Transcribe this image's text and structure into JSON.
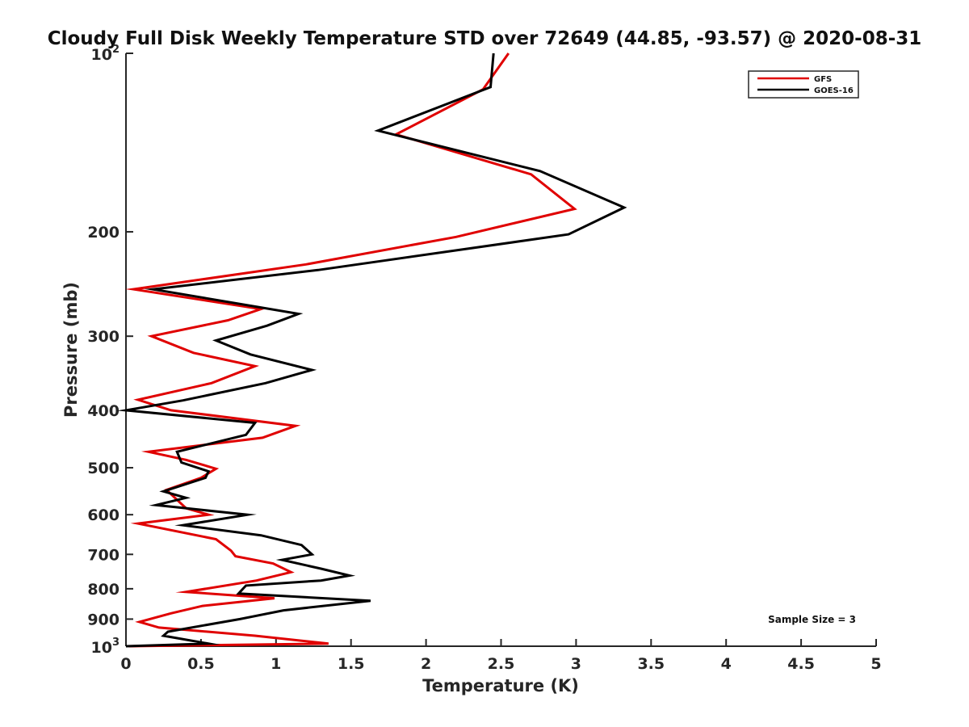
{
  "chart_data": {
    "type": "line",
    "title": "Cloudy Full Disk Weekly Temperature STD over 72649 (44.85, -93.57) @ 2020-08-31",
    "xlabel": "Temperature (K)",
    "ylabel": "Pressure (mb)",
    "xlim": [
      0,
      5
    ],
    "ylim": [
      1000,
      100
    ],
    "y_scale": "log",
    "y_reversed": true,
    "x_ticks": [
      "0",
      "0.5",
      "1",
      "1.5",
      "2",
      "2.5",
      "3",
      "3.5",
      "4",
      "4.5",
      "5"
    ],
    "x_tick_values": [
      0,
      0.5,
      1,
      1.5,
      2,
      2.5,
      3,
      3.5,
      4,
      4.5,
      5
    ],
    "y_ticks_plain": [
      {
        "value": 200,
        "label": "200"
      },
      {
        "value": 300,
        "label": "300"
      },
      {
        "value": 400,
        "label": "400"
      },
      {
        "value": 500,
        "label": "500"
      },
      {
        "value": 600,
        "label": "600"
      },
      {
        "value": 700,
        "label": "700"
      },
      {
        "value": 800,
        "label": "800"
      },
      {
        "value": 900,
        "label": "900"
      }
    ],
    "y_ticks_power": [
      {
        "value": 100,
        "base": "10",
        "exp": "2"
      },
      {
        "value": 1000,
        "base": "10",
        "exp": "3"
      }
    ],
    "grid": false,
    "legend_position": "top-right",
    "annotation": "Sample Size = 3",
    "series": [
      {
        "name": "GFS",
        "color": "#e00000",
        "points": [
          [
            2.55,
            100
          ],
          [
            2.38,
            115
          ],
          [
            1.8,
            137
          ],
          [
            2.7,
            160
          ],
          [
            2.99,
            183
          ],
          [
            2.2,
            204
          ],
          [
            1.2,
            227
          ],
          [
            0.05,
            250
          ],
          [
            0.9,
            270
          ],
          [
            0.68,
            282
          ],
          [
            0.17,
            300
          ],
          [
            0.45,
            320
          ],
          [
            0.86,
            337
          ],
          [
            0.57,
            360
          ],
          [
            0.08,
            384
          ],
          [
            0.3,
            400
          ],
          [
            1.13,
            425
          ],
          [
            0.91,
            445
          ],
          [
            0.15,
            470
          ],
          [
            0.4,
            485
          ],
          [
            0.6,
            502
          ],
          [
            0.5,
            520
          ],
          [
            0.27,
            545
          ],
          [
            0.4,
            585
          ],
          [
            0.55,
            600
          ],
          [
            0.08,
            621
          ],
          [
            0.6,
            660
          ],
          [
            0.7,
            690
          ],
          [
            0.73,
            705
          ],
          [
            0.98,
            725
          ],
          [
            1.1,
            750
          ],
          [
            0.87,
            775
          ],
          [
            0.4,
            810
          ],
          [
            0.99,
            830
          ],
          [
            0.51,
            855
          ],
          [
            0.3,
            880
          ],
          [
            0.09,
            910
          ],
          [
            0.22,
            930
          ],
          [
            0.86,
            960
          ],
          [
            1.35,
            990
          ],
          [
            0.02,
            1000
          ]
        ]
      },
      {
        "name": "GOES-16",
        "color": "#000000",
        "points": [
          [
            2.45,
            100
          ],
          [
            2.43,
            114
          ],
          [
            1.68,
            135
          ],
          [
            2.76,
            158
          ],
          [
            3.32,
            182
          ],
          [
            2.95,
            202
          ],
          [
            1.28,
            232
          ],
          [
            0.18,
            250
          ],
          [
            1.15,
            275
          ],
          [
            0.94,
            288
          ],
          [
            0.6,
            305
          ],
          [
            0.83,
            322
          ],
          [
            1.24,
            342
          ],
          [
            0.93,
            360
          ],
          [
            0.38,
            385
          ],
          [
            0.0,
            400
          ],
          [
            0.86,
            420
          ],
          [
            0.8,
            440
          ],
          [
            0.34,
            470
          ],
          [
            0.37,
            490
          ],
          [
            0.55,
            507
          ],
          [
            0.53,
            520
          ],
          [
            0.25,
            548
          ],
          [
            0.4,
            562
          ],
          [
            0.2,
            578
          ],
          [
            0.81,
            600
          ],
          [
            0.38,
            625
          ],
          [
            0.9,
            650
          ],
          [
            1.17,
            675
          ],
          [
            1.24,
            700
          ],
          [
            1.04,
            715
          ],
          [
            1.3,
            740
          ],
          [
            1.49,
            760
          ],
          [
            1.3,
            775
          ],
          [
            0.8,
            790
          ],
          [
            0.75,
            815
          ],
          [
            1.63,
            838
          ],
          [
            1.05,
            870
          ],
          [
            0.76,
            900
          ],
          [
            0.28,
            945
          ],
          [
            0.25,
            960
          ],
          [
            0.55,
            990
          ],
          [
            0.0,
            1000
          ]
        ]
      }
    ]
  }
}
